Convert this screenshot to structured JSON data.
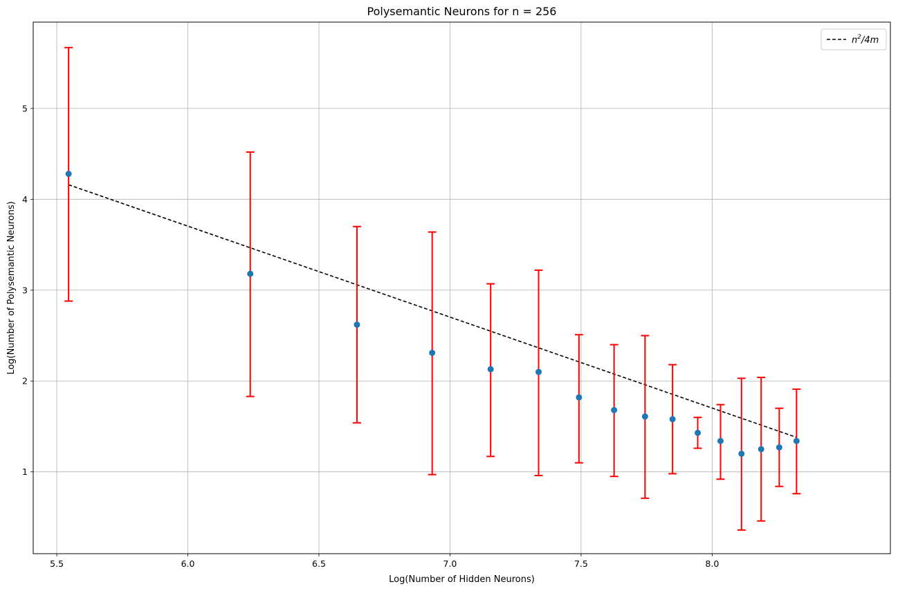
{
  "chart_data": {
    "type": "scatter",
    "title": "Polysemantic Neurons for n = 256",
    "xlabel": "Log(Number of Hidden Neurons)",
    "ylabel": "Log(Number of Polysemantic Neurons)",
    "xlim": [
      5.41,
      8.68
    ],
    "ylim": [
      0.1,
      5.95
    ],
    "xticks": [
      5.5,
      6.0,
      6.5,
      7.0,
      7.5,
      8.0
    ],
    "xtick_labels": [
      "5.5",
      "6.0",
      "6.5",
      "7.0",
      "7.5",
      "8.0"
    ],
    "yticks": [
      1,
      2,
      3,
      4,
      5
    ],
    "ytick_labels": [
      "1",
      "2",
      "3",
      "4",
      "5"
    ],
    "grid": true,
    "legend_position": "top-right",
    "series": [
      {
        "kind": "points-with-errorbars",
        "color": "#1f77b4",
        "errorbar_color": "#ff0000",
        "points": [
          {
            "x": 5.545,
            "y": 4.28,
            "err_low": 2.88,
            "err_high": 5.67
          },
          {
            "x": 6.238,
            "y": 3.18,
            "err_low": 1.83,
            "err_high": 4.52
          },
          {
            "x": 6.645,
            "y": 2.62,
            "err_low": 1.54,
            "err_high": 3.7
          },
          {
            "x": 6.932,
            "y": 2.31,
            "err_low": 0.97,
            "err_high": 3.64
          },
          {
            "x": 7.155,
            "y": 2.13,
            "err_low": 1.17,
            "err_high": 3.07
          },
          {
            "x": 7.338,
            "y": 2.1,
            "err_low": 0.96,
            "err_high": 3.22
          },
          {
            "x": 7.492,
            "y": 1.82,
            "err_low": 1.1,
            "err_high": 2.51
          },
          {
            "x": 7.626,
            "y": 1.68,
            "err_low": 0.95,
            "err_high": 2.4
          },
          {
            "x": 7.744,
            "y": 1.61,
            "err_low": 0.71,
            "err_high": 2.5
          },
          {
            "x": 7.849,
            "y": 1.58,
            "err_low": 0.98,
            "err_high": 2.18
          },
          {
            "x": 7.945,
            "y": 1.43,
            "err_low": 1.26,
            "err_high": 1.6
          },
          {
            "x": 8.032,
            "y": 1.34,
            "err_low": 0.92,
            "err_high": 1.74
          },
          {
            "x": 8.112,
            "y": 1.2,
            "err_low": 0.36,
            "err_high": 2.03
          },
          {
            "x": 8.187,
            "y": 1.25,
            "err_low": 0.46,
            "err_high": 2.04
          },
          {
            "x": 8.256,
            "y": 1.27,
            "err_low": 0.84,
            "err_high": 1.7
          },
          {
            "x": 8.322,
            "y": 1.34,
            "err_low": 0.76,
            "err_high": 1.91
          }
        ]
      },
      {
        "kind": "dashed-line",
        "name": "n²/4m",
        "color": "#000000",
        "x": [
          5.545,
          8.322
        ],
        "y": [
          4.16,
          1.38
        ]
      }
    ],
    "legend": {
      "entry_base": "n",
      "entry_sup": "2",
      "entry_rest": "/4m"
    }
  }
}
